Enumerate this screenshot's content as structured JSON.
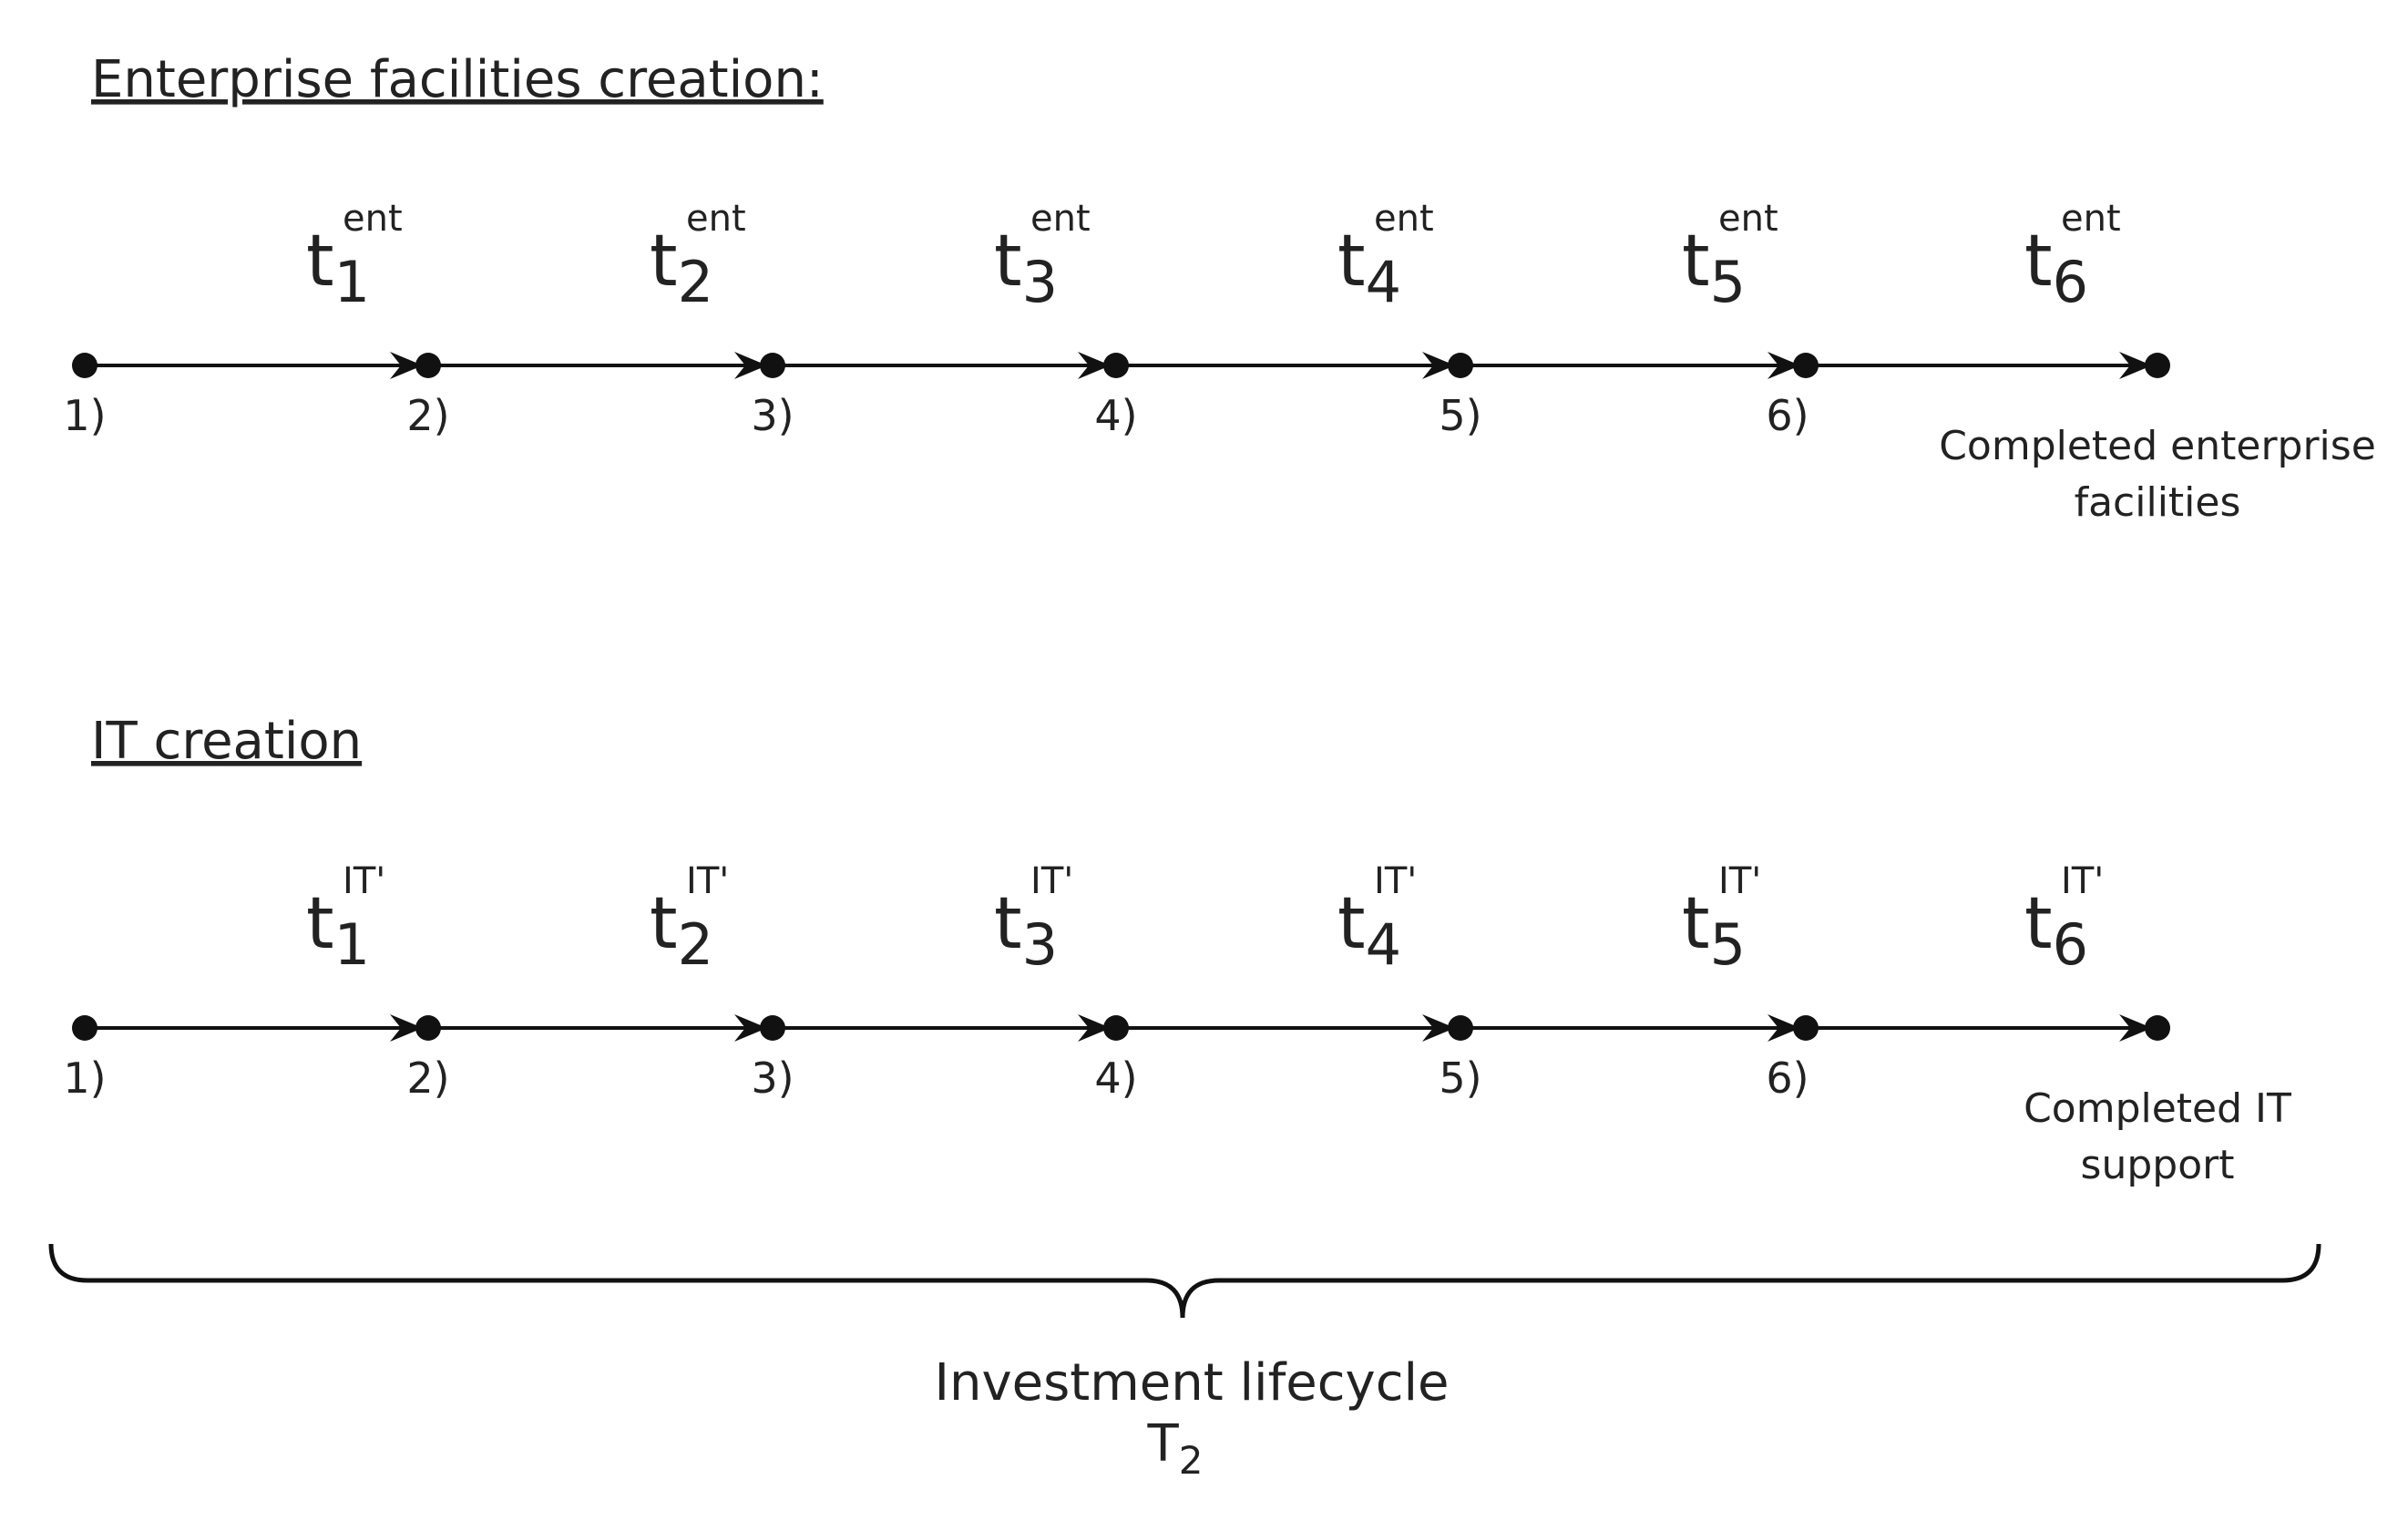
{
  "timelines": [
    {
      "title": "Enterprise facilities creation:",
      "segments": [
        {
          "base": "t",
          "sub": "1",
          "sup": "ent"
        },
        {
          "base": "t",
          "sub": "2",
          "sup": "ent"
        },
        {
          "base": "t",
          "sub": "3",
          "sup": "ent"
        },
        {
          "base": "t",
          "sub": "4",
          "sup": "ent"
        },
        {
          "base": "t",
          "sub": "5",
          "sup": "ent"
        },
        {
          "base": "t",
          "sub": "6",
          "sup": "ent"
        }
      ],
      "points": [
        "1)",
        "2)",
        "3)",
        "4)",
        "5)",
        "6)"
      ],
      "end_label": [
        "Completed enterprise",
        "facilities"
      ]
    },
    {
      "title": "IT creation",
      "segments": [
        {
          "base": "t",
          "sub": "1",
          "sup": "IT'"
        },
        {
          "base": "t",
          "sub": "2",
          "sup": "IT'"
        },
        {
          "base": "t",
          "sub": "3",
          "sup": "IT'"
        },
        {
          "base": "t",
          "sub": "4",
          "sup": "IT'"
        },
        {
          "base": "t",
          "sub": "5",
          "sup": "IT'"
        },
        {
          "base": "t",
          "sub": "6",
          "sup": "IT'"
        }
      ],
      "points": [
        "1)",
        "2)",
        "3)",
        "4)",
        "5)",
        "6)"
      ],
      "end_label": [
        "Completed IT",
        "support"
      ]
    }
  ],
  "brace_label": {
    "text": "Investment lifecycle",
    "base": "T",
    "sub": "2"
  }
}
